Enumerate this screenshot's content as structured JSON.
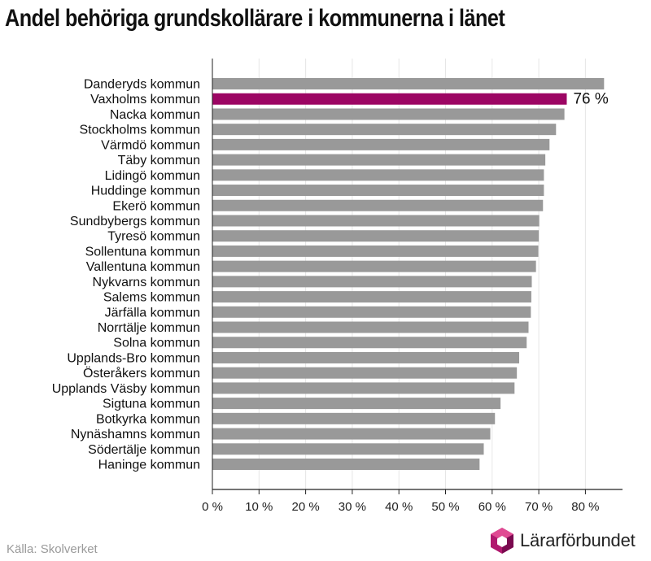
{
  "title": "Andel behöriga grundskollärare i kommunerna i länet",
  "source": "Källa: Skolverket",
  "brand": "Lärarförbundet",
  "colors": {
    "bar": "#999999",
    "highlight": "#9c0563",
    "grid": "#e6e6e6",
    "axis": "#222222"
  },
  "chart_data": {
    "type": "bar",
    "orientation": "horizontal",
    "categories": [
      "Danderyds kommun",
      "Vaxholms kommun",
      "Nacka kommun",
      "Stockholms kommun",
      "Värmdö kommun",
      "Täby kommun",
      "Lidingö kommun",
      "Huddinge kommun",
      "Ekerö kommun",
      "Sundbybergs kommun",
      "Tyresö kommun",
      "Sollentuna kommun",
      "Vallentuna kommun",
      "Nykvarns kommun",
      "Salems kommun",
      "Järfälla kommun",
      "Norrtälje kommun",
      "Solna kommun",
      "Upplands-Bro kommun",
      "Österåkers kommun",
      "Upplands Väsby kommun",
      "Sigtuna kommun",
      "Botkyrka kommun",
      "Nynäshamns kommun",
      "Södertälje kommun",
      "Haninge kommun"
    ],
    "values": [
      84,
      76,
      75.5,
      73.7,
      72.3,
      71.4,
      71.1,
      71.1,
      70.9,
      70.1,
      70.0,
      69.9,
      69.4,
      68.5,
      68.4,
      68.3,
      67.8,
      67.4,
      65.8,
      65.3,
      64.8,
      61.8,
      60.6,
      59.6,
      58.2,
      57.3
    ],
    "highlight_index": 1,
    "highlight_label": "76 %",
    "xlim": [
      0,
      88
    ],
    "ticks": [
      0,
      10,
      20,
      30,
      40,
      50,
      60,
      70,
      80
    ],
    "tick_labels": [
      "0 %",
      "10 %",
      "20 %",
      "30 %",
      "40 %",
      "50 %",
      "60 %",
      "70 %",
      "80 %"
    ],
    "grid": true
  }
}
